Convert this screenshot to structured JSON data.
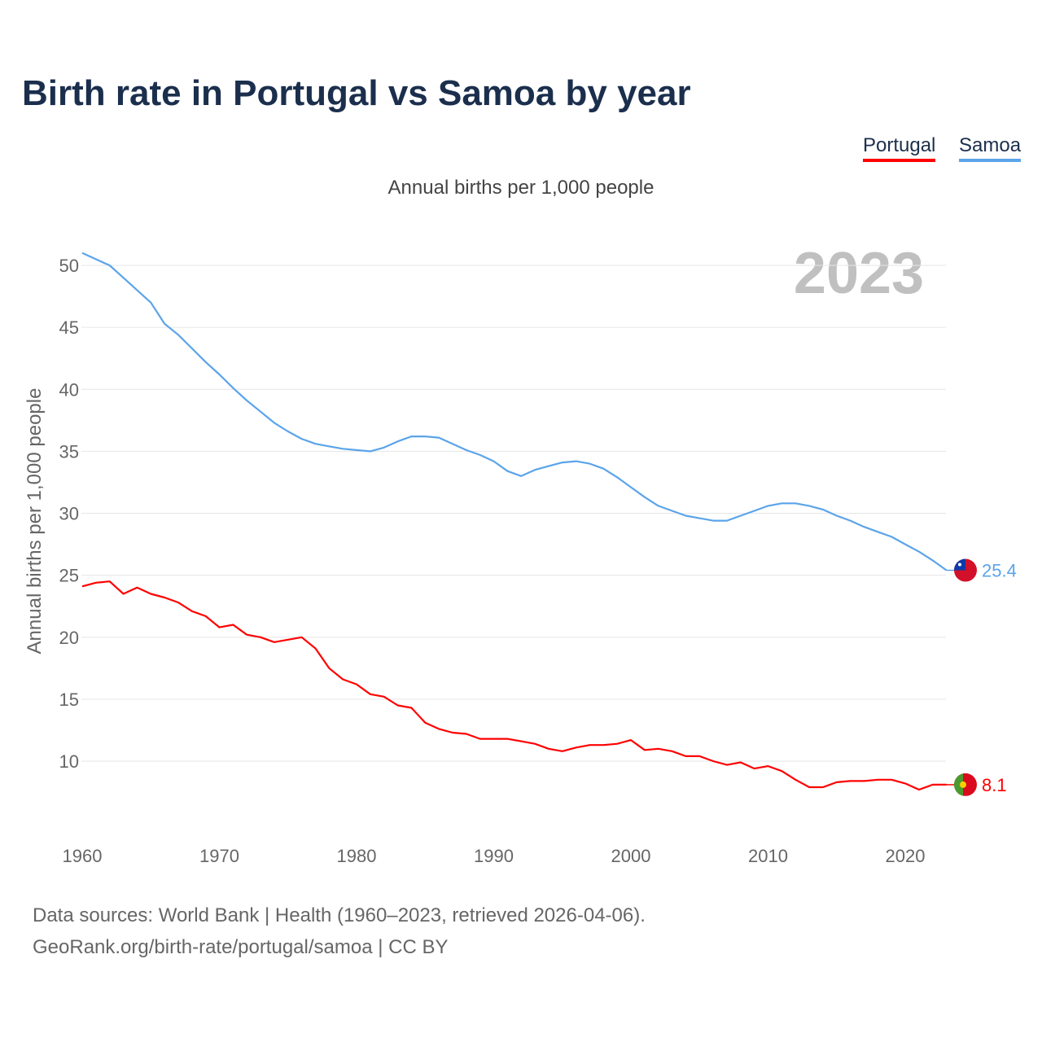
{
  "title": "Birth rate in Portugal vs Samoa by year",
  "legend": [
    {
      "label": "Portugal",
      "color": "#ff0000"
    },
    {
      "label": "Samoa",
      "color": "#5ba4ea"
    }
  ],
  "footer": {
    "line1": "Data sources: World Bank | Health (1960–2023, retrieved 2026-04-06).",
    "line2": "GeoRank.org/birth-rate/portugal/samoa | CC BY"
  },
  "chart_data": {
    "type": "line",
    "title": "Birth rate in Portugal vs Samoa by year",
    "subtitle": "Annual births per 1,000 people",
    "ylabel": "Annual births per 1,000 people",
    "xlabel": "",
    "year_label": "2023",
    "xlim": [
      1960,
      2023
    ],
    "ylim": [
      5,
      51
    ],
    "x_ticks": [
      1960,
      1970,
      1980,
      1990,
      2000,
      2010,
      2020
    ],
    "y_ticks": [
      10,
      15,
      20,
      25,
      30,
      35,
      40,
      45,
      50
    ],
    "grid": true,
    "legend_position": "top-right",
    "x_start": 1960,
    "series": [
      {
        "name": "Portugal",
        "color": "#ff0000",
        "end_label": "8.1",
        "flag": "portugal-flag",
        "values": [
          24.1,
          24.4,
          24.5,
          23.5,
          24.0,
          23.5,
          23.2,
          22.8,
          22.1,
          21.7,
          20.8,
          21.0,
          20.2,
          20.0,
          19.6,
          19.8,
          20.0,
          19.1,
          17.5,
          16.6,
          16.2,
          15.4,
          15.2,
          14.5,
          14.3,
          13.1,
          12.6,
          12.3,
          12.2,
          11.8,
          11.8,
          11.8,
          11.6,
          11.4,
          11.0,
          10.8,
          11.1,
          11.3,
          11.3,
          11.4,
          11.7,
          10.9,
          11.0,
          10.8,
          10.4,
          10.4,
          10.0,
          9.7,
          9.9,
          9.4,
          9.6,
          9.2,
          8.5,
          7.9,
          7.9,
          8.3,
          8.4,
          8.4,
          8.5,
          8.5,
          8.2,
          7.7,
          8.1,
          8.1
        ]
      },
      {
        "name": "Samoa",
        "color": "#5ba4ea",
        "end_label": "25.4",
        "flag": "samoa-flag",
        "values": [
          51.0,
          50.5,
          50.0,
          49.0,
          48.0,
          47.0,
          45.3,
          44.4,
          43.3,
          42.2,
          41.2,
          40.1,
          39.1,
          38.2,
          37.3,
          36.6,
          36.0,
          35.6,
          35.4,
          35.2,
          35.1,
          35.0,
          35.3,
          35.8,
          36.2,
          36.2,
          36.1,
          35.6,
          35.1,
          34.7,
          34.2,
          33.4,
          33.0,
          33.5,
          33.8,
          34.1,
          34.2,
          34.0,
          33.6,
          32.9,
          32.1,
          31.3,
          30.6,
          30.2,
          29.8,
          29.6,
          29.4,
          29.4,
          29.8,
          30.2,
          30.6,
          30.8,
          30.8,
          30.6,
          30.3,
          29.8,
          29.4,
          28.9,
          28.5,
          28.1,
          27.5,
          26.9,
          26.2,
          25.4
        ]
      }
    ]
  }
}
